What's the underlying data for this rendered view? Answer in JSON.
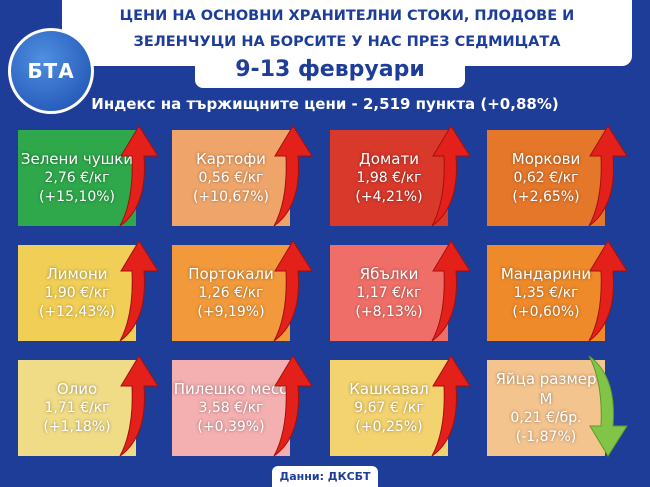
{
  "logo": "БТА",
  "header": {
    "title_line1": "ЦЕНИ НА ОСНОВНИ ХРАНИТЕЛНИ СТОКИ, ПЛОДОВЕ И",
    "title_line2": "ЗЕЛЕНЧУЦИ НА БОРСИТЕ У НАС ПРЕЗ СЕДМИЦАТА",
    "date": "9-13 февруари"
  },
  "index": "Индекс на тържищните цени - 2,519 пункта (+0,88%)",
  "tiles": [
    {
      "name": "Зелени чушки",
      "price": "2,76 €/кг",
      "change": "(+15,10%)"
    },
    {
      "name": "Картофи",
      "price": "0,56 €/кг",
      "change": "(+10,67%)"
    },
    {
      "name": "Домати",
      "price": "1,98 €/кг",
      "change": "(+4,21%)"
    },
    {
      "name": "Моркови",
      "price": "0,62 €/кг",
      "change": "(+2,65%)"
    },
    {
      "name": "Лимони",
      "price": "1,90 €/кг",
      "change": "(+12,43%)"
    },
    {
      "name": "Портокали",
      "price": "1,26 €/кг",
      "change": "(+9,19%)"
    },
    {
      "name": "Ябълки",
      "price": "1,17 €/кг",
      "change": "(+8,13%)"
    },
    {
      "name": "Мандарини",
      "price": "1,35 €/кг",
      "change": "(+0,60%)"
    },
    {
      "name": "Олио",
      "price": "1,71 €/кг",
      "change": "(+1,18%)"
    },
    {
      "name": "Пилешко месо",
      "price": "3,58 €/кг",
      "change": "(+0,39%)"
    },
    {
      "name": "Кашкавал",
      "price": "9,67 € /кг",
      "change": "(+0,25%)"
    },
    {
      "name": "Яйца размер М",
      "price": "0,21 €/бр.",
      "change": "(-1,87%)"
    }
  ],
  "source": "Данни: ДКСБТ"
}
